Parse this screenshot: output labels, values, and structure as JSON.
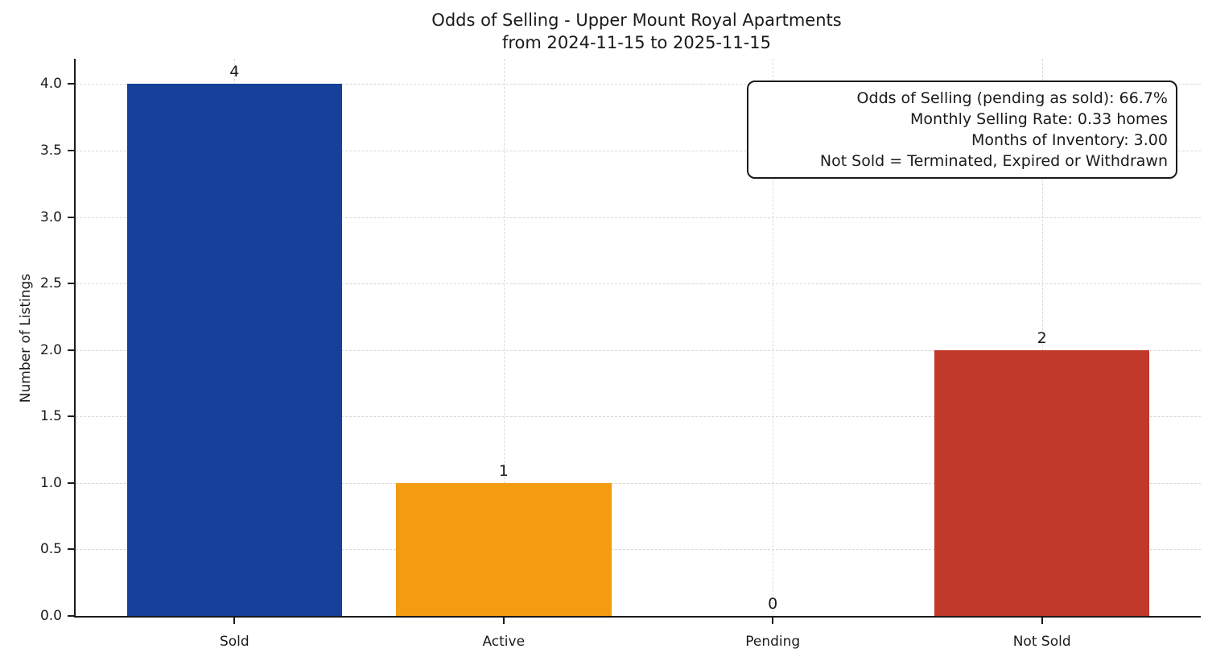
{
  "title": {
    "line1": "Odds of Selling - Upper Mount Royal Apartments",
    "line2": "from 2024-11-15 to 2025-11-15"
  },
  "ylabel": "Number of Listings",
  "annotation": {
    "lines": [
      "Odds of Selling (pending as sold): 66.7%",
      "Monthly Selling Rate: 0.33 homes",
      "Months of Inventory: 3.00",
      "Not Sold = Terminated, Expired or Withdrawn"
    ]
  },
  "chart_data": {
    "type": "bar",
    "title": "Odds of Selling - Upper Mount Royal Apartments\nfrom 2024-11-15 to 2025-11-15",
    "categories": [
      "Sold",
      "Active",
      "Pending",
      "Not Sold"
    ],
    "values": [
      4,
      1,
      0,
      2
    ],
    "bar_colors": [
      "#164099",
      "#f39c12",
      "#808080",
      "#c0392b"
    ],
    "value_labels": [
      "4",
      "1",
      "0",
      "2"
    ],
    "xlabel": "",
    "ylabel": "Number of Listings",
    "ylim": [
      0,
      4.19
    ],
    "yticks": [
      0.0,
      0.5,
      1.0,
      1.5,
      2.0,
      2.5,
      3.0,
      3.5,
      4.0
    ],
    "bar_width_fraction": 0.8,
    "grid": "dashed, both axes, light gray",
    "legend": "none",
    "annotation_box_position": "top-right",
    "annotation_lines": [
      "Odds of Selling (pending as sold): 66.7%",
      "Monthly Selling Rate: 0.33 homes",
      "Months of Inventory: 3.00",
      "Not Sold = Terminated, Expired or Withdrawn"
    ]
  }
}
